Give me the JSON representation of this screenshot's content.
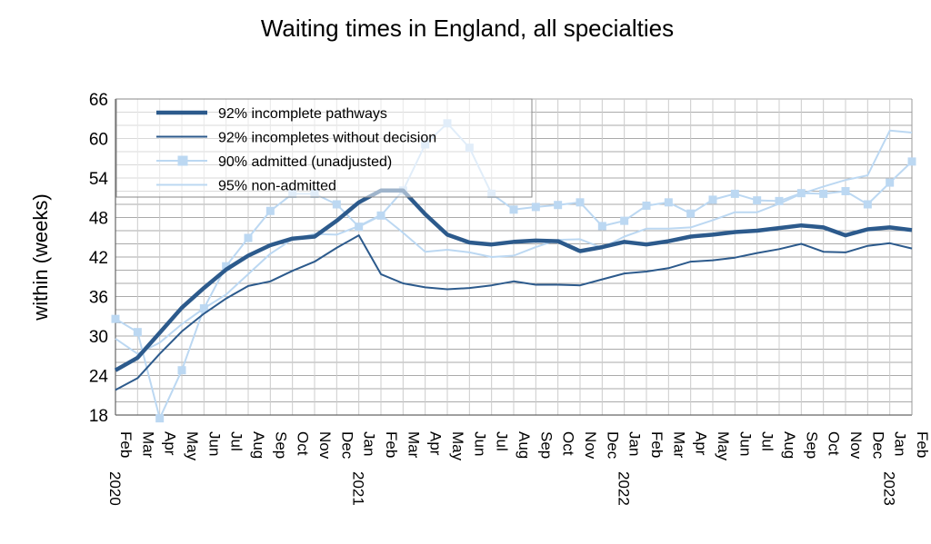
{
  "chart_data": {
    "type": "line",
    "title": "Waiting times in England, all specialties",
    "xlabel": "",
    "ylabel": "within  (weeks)",
    "ylim": [
      18,
      66
    ],
    "yticks": [
      18,
      24,
      30,
      36,
      42,
      48,
      54,
      60,
      66
    ],
    "grid": "horizontal minor every 2 weeks",
    "legend_position": "top-left",
    "month_labels": [
      "Feb",
      "Mar",
      "Apr",
      "May",
      "Jun",
      "Jul",
      "Aug",
      "Sep",
      "Oct",
      "Nov",
      "Dec",
      "Jan",
      "Feb",
      "Mar",
      "Apr",
      "May",
      "Jun",
      "Jul",
      "Aug",
      "Sep",
      "Oct",
      "Nov",
      "Dec",
      "Jan",
      "Feb",
      "Mar",
      "Apr",
      "May",
      "Jun",
      "Jul",
      "Aug",
      "Sep",
      "Oct",
      "Nov",
      "Dec",
      "Jan",
      "Feb"
    ],
    "year_labels": [
      {
        "index": 0,
        "label": "2020"
      },
      {
        "index": 11,
        "label": "2021"
      },
      {
        "index": 23,
        "label": "2022"
      },
      {
        "index": 35,
        "label": "2023"
      }
    ],
    "series": [
      {
        "name": "92% incomplete pathways",
        "color": "#2c5a8c",
        "style": "thick",
        "values": [
          24.8,
          26.7,
          30.5,
          34.3,
          37.3,
          40.1,
          42.2,
          43.8,
          44.8,
          45.1,
          47.5,
          50.3,
          52.1,
          52.1,
          48.5,
          45.4,
          44.2,
          43.9,
          44.3,
          44.5,
          44.4,
          42.9,
          43.5,
          44.3,
          43.9,
          44.4,
          45.1,
          45.4,
          45.8,
          46.0,
          46.4,
          46.8,
          46.5,
          45.3,
          46.2,
          46.5,
          46.1
        ]
      },
      {
        "name": "92% incompletes without decision",
        "color": "#2c5a8c",
        "style": "thin",
        "values": [
          21.8,
          23.6,
          27.3,
          30.7,
          33.4,
          35.7,
          37.6,
          38.3,
          39.9,
          41.3,
          43.4,
          45.3,
          39.4,
          38.0,
          37.4,
          37.1,
          37.3,
          37.7,
          38.3,
          37.8,
          37.8,
          37.7,
          38.6,
          39.5,
          39.8,
          40.3,
          41.3,
          41.5,
          41.9,
          42.6,
          43.2,
          44.0,
          42.8,
          42.7,
          43.7,
          44.1,
          43.3
        ]
      },
      {
        "name": "90% admitted (unadjusted)",
        "color": "#bcd8f2",
        "style": "markers",
        "values": [
          32.6,
          30.6,
          17.5,
          24.8,
          34.2,
          40.6,
          44.9,
          49.0,
          51.6,
          51.6,
          50.0,
          46.6,
          48.3,
          52.1,
          59.1,
          62.3,
          58.6,
          51.6,
          49.2,
          49.6,
          49.9,
          50.3,
          46.7,
          47.5,
          49.8,
          50.3,
          48.6,
          50.7,
          51.6,
          50.6,
          50.5,
          51.7,
          51.6,
          52.0,
          50.0,
          53.3,
          56.5
        ]
      },
      {
        "name": "95% non-admitted",
        "color": "#bcd8f2",
        "style": "thin",
        "values": [
          29.6,
          27.3,
          29.0,
          31.8,
          34.2,
          36.3,
          39.4,
          42.5,
          44.7,
          45.5,
          45.4,
          46.7,
          48.4,
          45.7,
          42.8,
          43.1,
          42.7,
          42.0,
          42.2,
          43.5,
          44.6,
          44.7,
          43.4,
          45.1,
          46.3,
          46.3,
          46.5,
          47.6,
          48.8,
          48.8,
          50.1,
          51.6,
          52.7,
          53.7,
          54.4,
          61.2,
          60.9
        ]
      }
    ]
  }
}
